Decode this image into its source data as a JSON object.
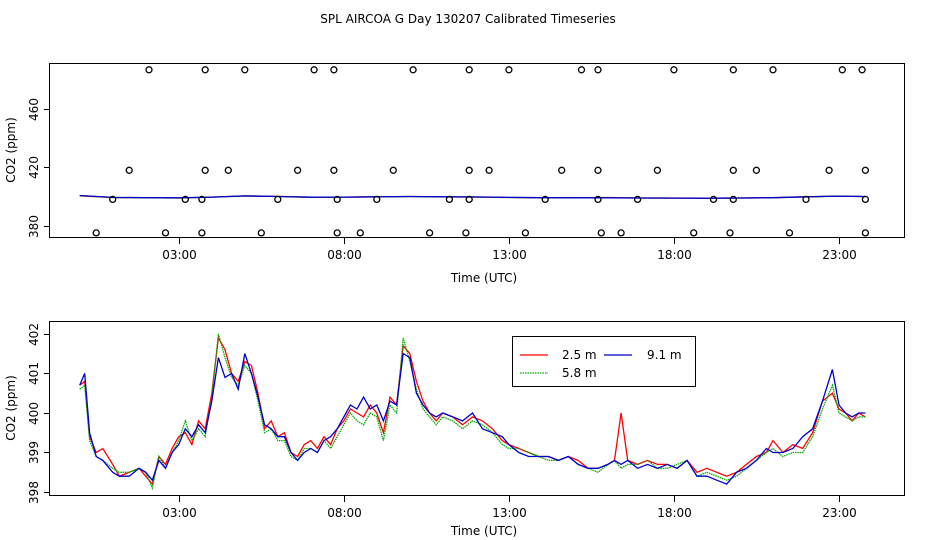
{
  "figure_title": "SPL AIRCOA G  Day 130207  Calibrated Timeseries",
  "chart_data": [
    {
      "type": "line",
      "title": "",
      "xlabel": "Time (UTC)",
      "ylabel": "CO2 (ppm)",
      "xlim": [
        -0.9,
        25.0
      ],
      "ylim": [
        371.5,
        491.0
      ],
      "x_ticks": [
        3,
        8,
        13,
        18,
        23
      ],
      "x_tick_labels": [
        "03:00",
        "08:00",
        "13:00",
        "18:00",
        "23:00"
      ],
      "y_ticks": [
        380,
        420,
        460
      ],
      "y_tick_labels": [
        "380",
        "420",
        "460"
      ],
      "series": [
        {
          "name": "2.5 m",
          "color": "#ff0000",
          "x": [
            0,
            1,
            2,
            3,
            4,
            5,
            6,
            7,
            8,
            9,
            10,
            11,
            12,
            13,
            14,
            15,
            16,
            17,
            18,
            19,
            20,
            21,
            22,
            23,
            23.8
          ],
          "y": [
            400.5,
            399.3,
            399.2,
            399.0,
            399.6,
            400.4,
            400.1,
            399.5,
            399.6,
            399.8,
            400.0,
            399.7,
            399.6,
            399.3,
            399.2,
            399.1,
            399.3,
            399.0,
            399.0,
            398.8,
            399.0,
            399.2,
            399.8,
            400.3,
            399.9
          ]
        },
        {
          "name": "5.8 m",
          "color": "#00aa00",
          "x": [
            0,
            1,
            2,
            3,
            4,
            5,
            6,
            7,
            8,
            9,
            10,
            11,
            12,
            13,
            14,
            15,
            16,
            17,
            18,
            19,
            20,
            21,
            22,
            23,
            23.8
          ],
          "y": [
            400.6,
            399.3,
            399.1,
            399.0,
            399.5,
            400.3,
            400.0,
            399.4,
            399.5,
            399.7,
            399.9,
            399.7,
            399.6,
            399.3,
            399.2,
            399.1,
            399.1,
            399.0,
            398.9,
            398.8,
            399.0,
            399.1,
            399.7,
            400.2,
            399.9
          ]
        },
        {
          "name": "9.1 m",
          "color": "#0000cc",
          "x": [
            0,
            1,
            2,
            3,
            4,
            5,
            6,
            7,
            8,
            9,
            10,
            11,
            12,
            13,
            14,
            15,
            16,
            17,
            18,
            19,
            20,
            21,
            22,
            23,
            23.8
          ],
          "y": [
            400.7,
            399.4,
            399.2,
            399.1,
            399.6,
            400.4,
            400.0,
            399.5,
            399.6,
            399.8,
            400.0,
            399.8,
            399.7,
            399.4,
            399.2,
            399.1,
            399.1,
            399.0,
            398.9,
            398.8,
            399.0,
            399.2,
            399.8,
            400.3,
            400.0
          ]
        }
      ],
      "scatter_series": {
        "name": "samples",
        "marker": "open-circle",
        "color": "#000000",
        "points": [
          [
            2.1,
            487
          ],
          [
            3.8,
            487
          ],
          [
            5.0,
            487
          ],
          [
            7.1,
            487
          ],
          [
            7.7,
            487
          ],
          [
            10.1,
            487
          ],
          [
            11.8,
            487
          ],
          [
            13.0,
            487
          ],
          [
            15.2,
            487
          ],
          [
            15.7,
            487
          ],
          [
            18.0,
            487
          ],
          [
            19.8,
            487
          ],
          [
            21.0,
            487
          ],
          [
            23.1,
            487
          ],
          [
            23.7,
            487
          ],
          [
            1.5,
            418
          ],
          [
            3.8,
            418
          ],
          [
            4.5,
            418
          ],
          [
            6.6,
            418
          ],
          [
            7.7,
            418
          ],
          [
            9.5,
            418
          ],
          [
            11.8,
            418
          ],
          [
            12.4,
            418
          ],
          [
            14.6,
            418
          ],
          [
            15.7,
            418
          ],
          [
            17.5,
            418
          ],
          [
            19.8,
            418
          ],
          [
            20.5,
            418
          ],
          [
            22.7,
            418
          ],
          [
            23.8,
            418
          ],
          [
            1.0,
            398
          ],
          [
            3.2,
            398
          ],
          [
            3.7,
            398
          ],
          [
            6.0,
            398
          ],
          [
            7.8,
            398
          ],
          [
            9.0,
            398
          ],
          [
            11.2,
            398
          ],
          [
            11.8,
            398
          ],
          [
            14.1,
            398
          ],
          [
            15.7,
            398
          ],
          [
            16.9,
            398
          ],
          [
            19.2,
            398
          ],
          [
            19.8,
            398
          ],
          [
            22.0,
            398
          ],
          [
            23.8,
            398
          ],
          [
            0.5,
            375
          ],
          [
            2.6,
            375
          ],
          [
            3.7,
            375
          ],
          [
            5.5,
            375
          ],
          [
            7.8,
            375
          ],
          [
            8.5,
            375
          ],
          [
            10.6,
            375
          ],
          [
            11.7,
            375
          ],
          [
            13.5,
            375
          ],
          [
            15.8,
            375
          ],
          [
            16.4,
            375
          ],
          [
            18.6,
            375
          ],
          [
            19.7,
            375
          ],
          [
            21.5,
            375
          ],
          [
            23.8,
            375
          ]
        ]
      }
    },
    {
      "type": "line",
      "title": "",
      "xlabel": "Time (UTC)",
      "ylabel": "CO2 (ppm)",
      "xlim": [
        -0.9,
        25.0
      ],
      "ylim": [
        397.9,
        402.3
      ],
      "x_ticks": [
        3,
        8,
        13,
        18,
        23
      ],
      "x_tick_labels": [
        "03:00",
        "08:00",
        "13:00",
        "18:00",
        "23:00"
      ],
      "y_ticks": [
        398,
        399,
        400,
        401,
        402
      ],
      "y_tick_labels": [
        "398",
        "399",
        "400",
        "401",
        "402"
      ],
      "legend": {
        "position": "top-center",
        "entries": [
          "2.5 m",
          "9.1 m",
          "5.8 m"
        ]
      },
      "series": [
        {
          "name": "2.5 m",
          "color": "#ff0000",
          "x": [
            0,
            0.15,
            0.3,
            0.5,
            0.7,
            1.0,
            1.2,
            1.5,
            1.8,
            2.0,
            2.2,
            2.4,
            2.6,
            2.8,
            3.0,
            3.2,
            3.4,
            3.6,
            3.8,
            4.0,
            4.2,
            4.4,
            4.6,
            4.8,
            5.0,
            5.2,
            5.4,
            5.6,
            5.8,
            6.0,
            6.2,
            6.4,
            6.6,
            6.8,
            7.0,
            7.2,
            7.4,
            7.6,
            7.8,
            8.0,
            8.2,
            8.4,
            8.6,
            8.8,
            9.0,
            9.2,
            9.4,
            9.6,
            9.8,
            10.0,
            10.2,
            10.4,
            10.6,
            10.8,
            11.0,
            11.3,
            11.6,
            11.9,
            12.2,
            12.5,
            12.8,
            13.0,
            13.3,
            13.6,
            13.9,
            14.2,
            14.5,
            14.8,
            15.1,
            15.4,
            15.7,
            16.0,
            16.2,
            16.4,
            16.6,
            16.9,
            17.2,
            17.5,
            17.8,
            18.1,
            18.4,
            18.7,
            19.0,
            19.3,
            19.6,
            19.9,
            20.2,
            20.5,
            20.8,
            21.0,
            21.3,
            21.6,
            21.9,
            22.2,
            22.5,
            22.8,
            23.0,
            23.2,
            23.4,
            23.6,
            23.8
          ],
          "y": [
            400.7,
            400.8,
            399.4,
            399.0,
            399.1,
            398.7,
            398.4,
            398.5,
            398.6,
            398.4,
            398.2,
            398.9,
            398.7,
            399.1,
            399.4,
            399.5,
            399.2,
            399.8,
            399.6,
            400.5,
            401.9,
            401.6,
            401.0,
            400.8,
            401.3,
            401.2,
            400.5,
            399.6,
            399.8,
            399.4,
            399.5,
            399.0,
            398.9,
            399.2,
            399.3,
            399.1,
            399.4,
            399.2,
            399.6,
            399.8,
            400.1,
            400.0,
            399.9,
            400.2,
            400.0,
            399.5,
            400.4,
            400.2,
            401.7,
            401.5,
            400.8,
            400.3,
            400.0,
            399.8,
            400.0,
            399.9,
            399.7,
            399.9,
            399.8,
            399.6,
            399.3,
            399.2,
            399.1,
            399.0,
            398.9,
            398.9,
            398.8,
            398.9,
            398.8,
            398.6,
            398.6,
            398.7,
            398.8,
            400.0,
            398.8,
            398.7,
            398.8,
            398.7,
            398.7,
            398.6,
            398.8,
            398.5,
            398.6,
            398.5,
            398.4,
            398.5,
            398.7,
            398.9,
            399.0,
            399.3,
            399.0,
            399.2,
            399.1,
            399.5,
            400.3,
            400.5,
            400.1,
            400.0,
            399.8,
            400.0,
            399.9
          ]
        },
        {
          "name": "5.8 m",
          "color": "#00aa00",
          "x": [
            0,
            0.15,
            0.3,
            0.5,
            0.7,
            1.0,
            1.2,
            1.5,
            1.8,
            2.0,
            2.2,
            2.4,
            2.6,
            2.8,
            3.0,
            3.2,
            3.4,
            3.6,
            3.8,
            4.0,
            4.2,
            4.4,
            4.6,
            4.8,
            5.0,
            5.2,
            5.4,
            5.6,
            5.8,
            6.0,
            6.2,
            6.4,
            6.6,
            6.8,
            7.0,
            7.2,
            7.4,
            7.6,
            7.8,
            8.0,
            8.2,
            8.4,
            8.6,
            8.8,
            9.0,
            9.2,
            9.4,
            9.6,
            9.8,
            10.0,
            10.2,
            10.4,
            10.6,
            10.8,
            11.0,
            11.3,
            11.6,
            11.9,
            12.2,
            12.5,
            12.8,
            13.0,
            13.3,
            13.6,
            13.9,
            14.2,
            14.5,
            14.8,
            15.1,
            15.4,
            15.7,
            16.0,
            16.2,
            16.4,
            16.6,
            16.9,
            17.2,
            17.5,
            17.8,
            18.1,
            18.4,
            18.7,
            19.0,
            19.3,
            19.6,
            19.9,
            20.2,
            20.5,
            20.8,
            21.0,
            21.3,
            21.6,
            21.9,
            22.2,
            22.5,
            22.8,
            23.0,
            23.2,
            23.4,
            23.6,
            23.8
          ],
          "y": [
            400.6,
            400.7,
            399.3,
            398.9,
            398.8,
            398.6,
            398.5,
            398.5,
            398.6,
            398.5,
            398.1,
            398.9,
            398.6,
            399.0,
            399.3,
            399.8,
            399.3,
            399.6,
            399.4,
            400.4,
            402.0,
            401.4,
            400.9,
            400.7,
            401.2,
            401.0,
            400.3,
            399.5,
            399.6,
            399.3,
            399.3,
            398.9,
            398.8,
            399.1,
            399.1,
            399.0,
            399.3,
            399.1,
            399.4,
            399.7,
            400.0,
            399.8,
            399.7,
            400.0,
            399.9,
            399.3,
            400.2,
            400.0,
            401.9,
            401.3,
            400.6,
            400.1,
            399.9,
            399.7,
            399.9,
            399.8,
            399.6,
            399.8,
            399.7,
            399.5,
            399.2,
            399.1,
            399.1,
            399.0,
            398.9,
            398.8,
            398.8,
            398.9,
            398.7,
            398.6,
            398.5,
            398.7,
            398.8,
            398.6,
            398.7,
            398.7,
            398.8,
            398.6,
            398.6,
            398.7,
            398.8,
            398.4,
            398.5,
            398.4,
            398.3,
            398.4,
            398.6,
            398.8,
            399.0,
            399.1,
            398.9,
            399.0,
            399.0,
            399.4,
            400.1,
            400.7,
            400.0,
            399.9,
            399.8,
            399.9,
            399.9
          ]
        },
        {
          "name": "9.1 m",
          "color": "#0000cc",
          "x": [
            0,
            0.15,
            0.3,
            0.5,
            0.7,
            1.0,
            1.2,
            1.5,
            1.8,
            2.0,
            2.2,
            2.4,
            2.6,
            2.8,
            3.0,
            3.2,
            3.4,
            3.6,
            3.8,
            4.0,
            4.2,
            4.4,
            4.6,
            4.8,
            5.0,
            5.2,
            5.4,
            5.6,
            5.8,
            6.0,
            6.2,
            6.4,
            6.6,
            6.8,
            7.0,
            7.2,
            7.4,
            7.6,
            7.8,
            8.0,
            8.2,
            8.4,
            8.6,
            8.8,
            9.0,
            9.2,
            9.4,
            9.6,
            9.8,
            10.0,
            10.2,
            10.4,
            10.6,
            10.8,
            11.0,
            11.3,
            11.6,
            11.9,
            12.2,
            12.5,
            12.8,
            13.0,
            13.3,
            13.6,
            13.9,
            14.2,
            14.5,
            14.8,
            15.1,
            15.4,
            15.7,
            16.0,
            16.2,
            16.4,
            16.6,
            16.9,
            17.2,
            17.5,
            17.8,
            18.1,
            18.4,
            18.7,
            19.0,
            19.3,
            19.6,
            19.9,
            20.2,
            20.5,
            20.8,
            21.0,
            21.3,
            21.6,
            21.9,
            22.2,
            22.5,
            22.8,
            23.0,
            23.2,
            23.4,
            23.6,
            23.8
          ],
          "y": [
            400.7,
            401.0,
            399.5,
            398.9,
            398.8,
            398.5,
            398.4,
            398.4,
            398.6,
            398.5,
            398.3,
            398.8,
            398.6,
            399.0,
            399.2,
            399.6,
            399.4,
            399.7,
            399.5,
            400.3,
            401.4,
            400.9,
            401.0,
            400.6,
            401.5,
            401.0,
            400.4,
            399.7,
            399.6,
            399.4,
            399.4,
            399.0,
            398.8,
            399.0,
            399.1,
            399.0,
            399.3,
            399.4,
            399.6,
            399.9,
            400.2,
            400.1,
            400.4,
            400.1,
            400.2,
            399.8,
            400.3,
            400.2,
            401.5,
            401.4,
            400.5,
            400.2,
            400.0,
            399.9,
            400.0,
            399.9,
            399.8,
            400.0,
            399.6,
            399.5,
            399.4,
            399.2,
            399.0,
            398.9,
            398.9,
            398.9,
            398.8,
            398.9,
            398.7,
            398.6,
            398.6,
            398.7,
            398.8,
            398.7,
            398.8,
            398.6,
            398.7,
            398.6,
            398.7,
            398.6,
            398.8,
            398.4,
            398.4,
            398.3,
            398.2,
            398.5,
            398.6,
            398.8,
            399.1,
            399.0,
            399.0,
            399.1,
            399.4,
            399.6,
            400.3,
            401.1,
            400.2,
            400.0,
            399.9,
            400.0,
            400.0
          ]
        }
      ]
    }
  ]
}
